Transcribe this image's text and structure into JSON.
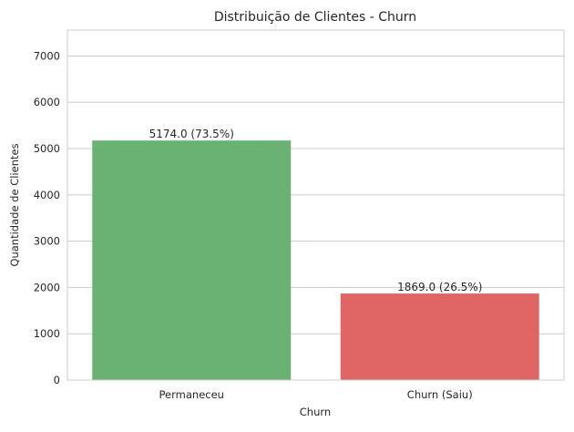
{
  "chart_data": {
    "type": "bar",
    "title": "Distribuição de Clientes - Churn",
    "xlabel": "Churn",
    "ylabel": "Quantidade de Clientes",
    "categories": [
      "Permaneceu",
      "Churn (Saiu)"
    ],
    "values": [
      5174.0,
      1869.0
    ],
    "data_labels": [
      "5174.0 (73.5%)",
      "1869.0 (26.5%)"
    ],
    "colors": [
      "#6ab174",
      "#e06666"
    ],
    "ylim": [
      0,
      7560
    ],
    "yticks": [
      0,
      1000,
      2000,
      3000,
      4000,
      5000,
      6000,
      7000
    ],
    "grid": true
  }
}
